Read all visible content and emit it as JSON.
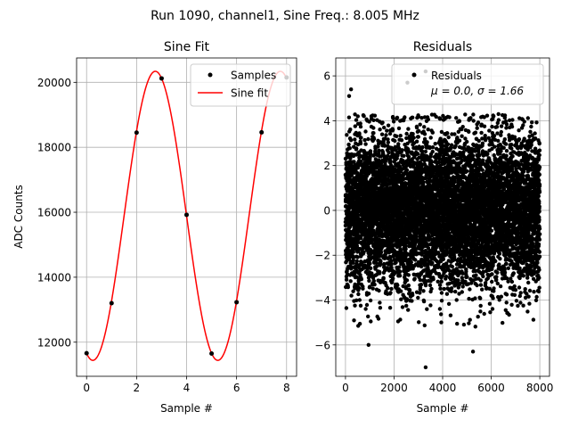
{
  "figure": {
    "suptitle": "Run 1090, channel1, Sine Freq.: 8.005 MHz"
  },
  "chart_data": [
    {
      "type": "line",
      "title": "Sine Fit",
      "xlabel": "Sample #",
      "ylabel": "ADC Counts",
      "xlim": [
        -0.4,
        8.4
      ],
      "ylim": [
        10950,
        20750
      ],
      "xticks": [
        0,
        2,
        4,
        6,
        8
      ],
      "xtick_labels": [
        "0",
        "2",
        "4",
        "6",
        "8"
      ],
      "yticks": [
        12000,
        14000,
        16000,
        18000,
        20000
      ],
      "ytick_labels": [
        "12000",
        "14000",
        "16000",
        "18000",
        "20000"
      ],
      "grid": true,
      "legend": "upper right",
      "colors": {
        "samples": "#000000",
        "fit": "#ff0000"
      },
      "samples": {
        "name": "Samples",
        "x": [
          0,
          1,
          2,
          3,
          4,
          5,
          6,
          7,
          8
        ],
        "y": [
          11660,
          13200,
          18450,
          20120,
          15920,
          11650,
          13230,
          18460,
          20150
        ]
      },
      "fit": {
        "name": "Sine fit",
        "amplitude": 4450,
        "offset": 15890,
        "omega": 1.2568,
        "phase": -1.885,
        "x_range": [
          0,
          8
        ]
      }
    },
    {
      "type": "scatter",
      "title": "Residuals",
      "xlabel": "Sample #",
      "ylabel": "",
      "xlim": [
        -400,
        8400
      ],
      "ylim": [
        -7.4,
        6.8
      ],
      "xticks": [
        0,
        2000,
        4000,
        6000,
        8000
      ],
      "xtick_labels": [
        "0",
        "2000",
        "4000",
        "6000",
        "8000"
      ],
      "yticks": [
        -6,
        -4,
        -2,
        0,
        2,
        4,
        6
      ],
      "ytick_labels": [
        "−6",
        "−4",
        "−2",
        "0",
        "2",
        "4",
        "6"
      ],
      "grid": true,
      "legend": "upper right",
      "colors": {
        "points": "#000000"
      },
      "series_name": "Residuals",
      "stats_label": "μ = 0.0, σ = 1.66",
      "n_points": 8000,
      "mean": 0.0,
      "sigma": 1.66,
      "outliers": [
        {
          "x": 3300,
          "y": -7.0
        },
        {
          "x": 950,
          "y": -6.0
        },
        {
          "x": 5250,
          "y": -6.3
        },
        {
          "x": 3300,
          "y": 6.2
        },
        {
          "x": 2550,
          "y": 5.7
        },
        {
          "x": 150,
          "y": 5.1
        },
        {
          "x": 230,
          "y": 5.4
        }
      ]
    }
  ]
}
